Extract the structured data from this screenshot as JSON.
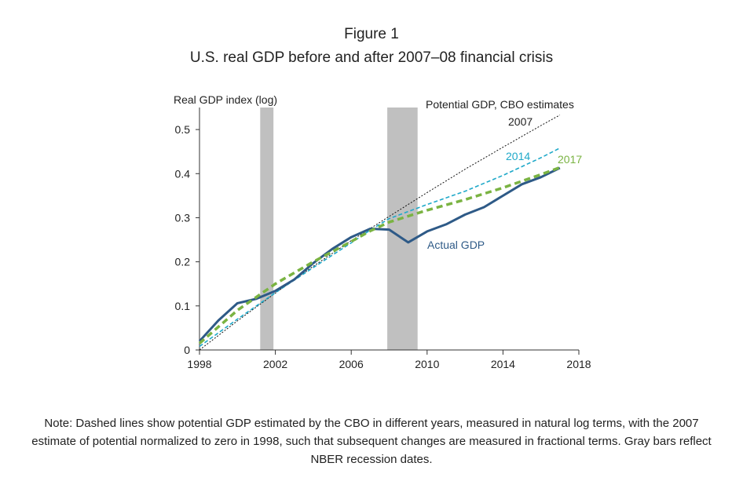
{
  "figure_label": "Figure 1",
  "title": "U.S. real GDP before and after 2007–08 financial crisis",
  "note": "Note: Dashed lines show potential GDP estimated by the CBO in different years, measured in natural log terms, with the 2007 estimate of potential normalized to zero in 1998, such that subsequent changes are measured in fractional terms. Gray bars reflect NBER recession dates.",
  "chart_data": {
    "type": "line",
    "ylabel": "Real GDP index (log)",
    "xlabel": "",
    "xlim": [
      1998,
      2018
    ],
    "ylim": [
      0,
      0.55
    ],
    "xticks": [
      1998,
      2002,
      2006,
      2010,
      2014,
      2018
    ],
    "yticks": [
      0,
      0.1,
      0.2,
      0.3,
      0.4,
      0.5
    ],
    "ytick_labels": [
      "0",
      "0.1",
      "0.2",
      "0.3",
      "0.4",
      "0.5"
    ],
    "recessions": [
      {
        "start": 2001.2,
        "end": 2001.9
      },
      {
        "start": 2007.9,
        "end": 2009.5
      }
    ],
    "annotations": {
      "potential_header": "Potential GDP, CBO estimates",
      "actual_label": "Actual GDP"
    },
    "series": [
      {
        "name": "Actual GDP",
        "label": "Actual GDP",
        "style": "solid",
        "color": "#2e5a87",
        "x": [
          1998,
          1999,
          2000,
          2001,
          2002,
          2003,
          2004,
          2005,
          2006,
          2007,
          2008,
          2009,
          2010,
          2011,
          2012,
          2013,
          2014,
          2015,
          2016,
          2017
        ],
        "y": [
          0.02,
          0.067,
          0.106,
          0.116,
          0.134,
          0.16,
          0.197,
          0.229,
          0.256,
          0.275,
          0.273,
          0.244,
          0.269,
          0.285,
          0.307,
          0.324,
          0.35,
          0.376,
          0.392,
          0.413
        ]
      },
      {
        "name": "Potential 2007",
        "label": "2007",
        "style": "dotted",
        "color": "#111111",
        "x": [
          1998,
          2000,
          2002,
          2004,
          2006,
          2008,
          2010,
          2012,
          2014,
          2016,
          2017
        ],
        "y": [
          0.0,
          0.066,
          0.129,
          0.19,
          0.248,
          0.303,
          0.357,
          0.41,
          0.46,
          0.509,
          0.533
        ]
      },
      {
        "name": "Potential 2014",
        "label": "2014",
        "style": "dashed",
        "color": "#1fa9c9",
        "x": [
          1998,
          2000,
          2002,
          2004,
          2006,
          2007,
          2008,
          2010,
          2012,
          2014,
          2016,
          2017
        ],
        "y": [
          0.008,
          0.07,
          0.13,
          0.187,
          0.243,
          0.272,
          0.298,
          0.33,
          0.36,
          0.396,
          0.436,
          0.458
        ]
      },
      {
        "name": "Potential 2017",
        "label": "2017",
        "style": "dashed",
        "color": "#7ab342",
        "x": [
          1998,
          2000,
          2002,
          2004,
          2006,
          2007,
          2008,
          2010,
          2012,
          2014,
          2016,
          2017
        ],
        "y": [
          0.015,
          0.09,
          0.15,
          0.2,
          0.246,
          0.27,
          0.29,
          0.317,
          0.341,
          0.368,
          0.398,
          0.414
        ]
      }
    ]
  }
}
